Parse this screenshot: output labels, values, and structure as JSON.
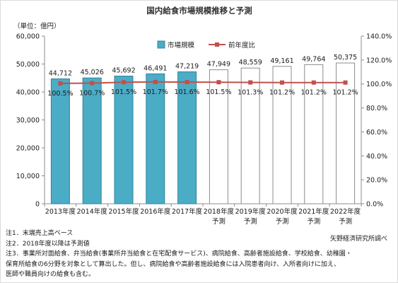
{
  "chart_data": {
    "type": "bar",
    "title": "国内給食市場規模推移と予測",
    "ylabel": "（単位：億円）",
    "categories": [
      [
        "2013年度"
      ],
      [
        "2014年度"
      ],
      [
        "2015年度"
      ],
      [
        "2016年度"
      ],
      [
        "2017年度"
      ],
      [
        "2018年度",
        "予測"
      ],
      [
        "2019年度",
        "予測"
      ],
      [
        "2020年度",
        "予測"
      ],
      [
        "2021年度",
        "予測"
      ],
      [
        "2022年度",
        "予測"
      ]
    ],
    "series": [
      {
        "name": "市場規模",
        "type": "bar",
        "axis": "left",
        "values": [
          44712,
          45026,
          45692,
          46491,
          47219,
          47949,
          48559,
          49161,
          49764,
          50375
        ],
        "data_labels": [
          "44,712",
          "45,026",
          "45,692",
          "46,491",
          "47,219",
          "47,949",
          "48,559",
          "49,161",
          "49,764",
          "50,375"
        ]
      },
      {
        "name": "前年度比",
        "type": "line",
        "axis": "right",
        "values": [
          100.5,
          100.7,
          101.5,
          101.7,
          101.6,
          101.5,
          101.3,
          101.2,
          101.2,
          101.2
        ],
        "data_labels": [
          "100.5%",
          "100.7%",
          "101.5%",
          "101.7%",
          "101.6%",
          "101.5%",
          "101.3%",
          "101.2%",
          "101.2%",
          "101.2%"
        ]
      }
    ],
    "ylim_left": [
      0,
      60000
    ],
    "yticks_left": [
      "0",
      "10,000",
      "20,000",
      "30,000",
      "40,000",
      "50,000",
      "60,000"
    ],
    "ylim_right": [
      0,
      140
    ],
    "yticks_right": [
      "0.0%",
      "20.0%",
      "40.0%",
      "60.0%",
      "80.0%",
      "100.0%",
      "120.0%",
      "140.0%"
    ],
    "grid": false,
    "legend": {
      "position": "top-center"
    },
    "colors": {
      "bar": "#4bacc6",
      "bar_border": "#31859c",
      "forecast_fill": "#ffffff",
      "forecast_border": "#8c8c8c",
      "line": "#c0504d",
      "axis": "#8c8c8c",
      "text": "#1a1a1a"
    }
  },
  "footer": {
    "notes": [
      "注1．末端売上高ベース",
      "注2．2018年度以降は予測値",
      "注3．事業所対面給食、弁当給食(事業所弁当給食と在宅配食サービス)、病院給食、高齢者施設給食、学校給食、幼稚園・",
      "保育所給食の6分野を対象として算出した。但し、病院給食や高齢者施設給食には入院患者向け、入所者向けに加え、",
      "医師や職員向けの給食も含む。"
    ],
    "source": "矢野経済研究所調べ"
  }
}
